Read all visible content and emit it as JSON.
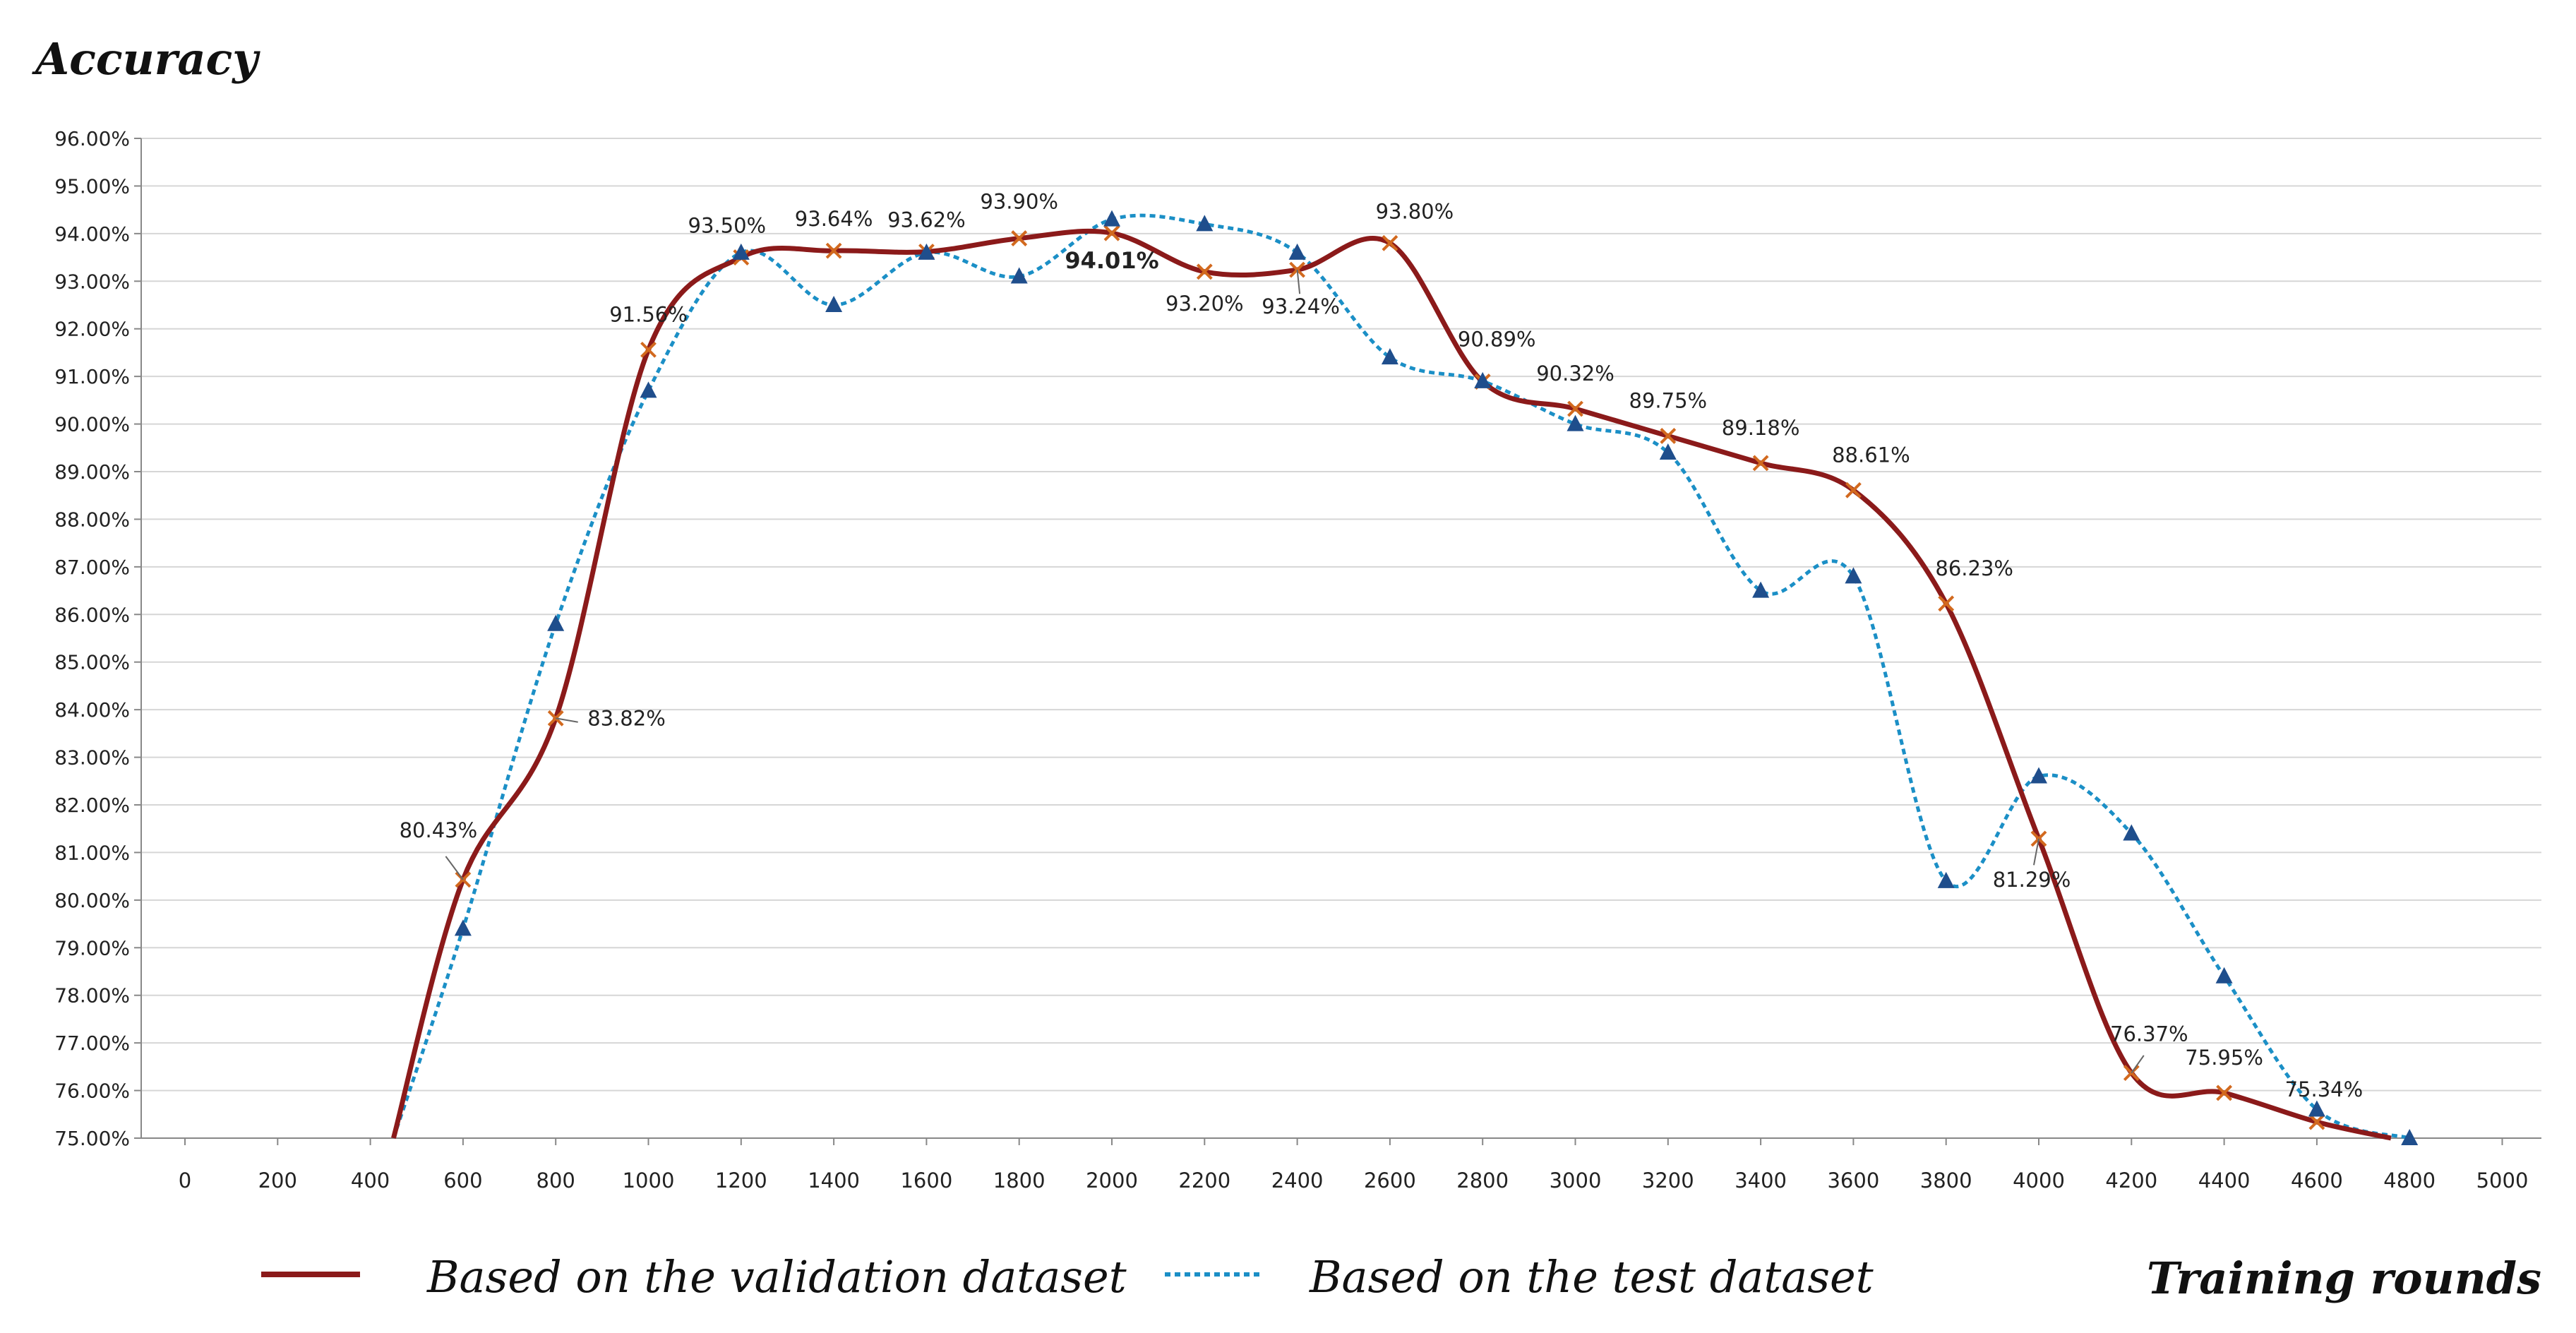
{
  "chart_data": {
    "type": "line",
    "y_axis_title": "Accuracy",
    "x_axis_title": "Training rounds",
    "ylim": [
      75,
      96
    ],
    "y_step": 1,
    "y_tick_suffix": ".00%",
    "x_ticks": [
      "0",
      "200",
      "400",
      "600",
      "800",
      "1000",
      "1200",
      "1400",
      "1600",
      "1800",
      "2000",
      "2200",
      "2400",
      "2600",
      "2800",
      "3000",
      "3200",
      "3400",
      "3600",
      "3800",
      "4000",
      "4200",
      "4400",
      "4600",
      "4800",
      "5000"
    ],
    "grid": true,
    "legend_position": "bottom",
    "series": [
      {
        "name": "Based on the validation dataset",
        "color": "#8b1a1a",
        "style": "solid",
        "marker": "x",
        "marker_color": "#d2691e",
        "points": [
          {
            "x": 450,
            "y": 75.0
          },
          {
            "x": 600,
            "y": 80.43,
            "label": "80.43%"
          },
          {
            "x": 800,
            "y": 83.82,
            "label": "83.82%"
          },
          {
            "x": 1000,
            "y": 91.56,
            "label": "91.56%"
          },
          {
            "x": 1200,
            "y": 93.5,
            "label": "93.50%"
          },
          {
            "x": 1400,
            "y": 93.64,
            "label": "93.64%"
          },
          {
            "x": 1600,
            "y": 93.62,
            "label": "93.62%"
          },
          {
            "x": 1800,
            "y": 93.9,
            "label": "93.90%"
          },
          {
            "x": 2000,
            "y": 94.01,
            "label": "94.01%"
          },
          {
            "x": 2200,
            "y": 93.2,
            "label": "93.20%"
          },
          {
            "x": 2400,
            "y": 93.24,
            "label": "93.24%"
          },
          {
            "x": 2600,
            "y": 93.8,
            "label": "93.80%"
          },
          {
            "x": 2800,
            "y": 90.89,
            "label": "90.89%"
          },
          {
            "x": 3000,
            "y": 90.32,
            "label": "90.32%"
          },
          {
            "x": 3200,
            "y": 89.75,
            "label": "89.75%"
          },
          {
            "x": 3400,
            "y": 89.18,
            "label": "89.18%"
          },
          {
            "x": 3600,
            "y": 88.61,
            "label": "88.61%"
          },
          {
            "x": 3800,
            "y": 86.23,
            "label": "86.23%"
          },
          {
            "x": 4000,
            "y": 81.29,
            "label": "81.29%"
          },
          {
            "x": 4200,
            "y": 76.37,
            "label": "76.37%"
          },
          {
            "x": 4400,
            "y": 75.95,
            "label": "75.95%"
          },
          {
            "x": 4600,
            "y": 75.34,
            "label": "75.34%"
          },
          {
            "x": 4760,
            "y": 75.0
          }
        ]
      },
      {
        "name": "Based on the test dataset",
        "color": "#1b8fc6",
        "style": "dotted",
        "marker": "triangle",
        "marker_color": "#1f4e8c",
        "points": [
          {
            "x": 450,
            "y": 75.0
          },
          {
            "x": 600,
            "y": 79.4
          },
          {
            "x": 800,
            "y": 85.8
          },
          {
            "x": 1000,
            "y": 90.7
          },
          {
            "x": 1200,
            "y": 93.6
          },
          {
            "x": 1400,
            "y": 92.5
          },
          {
            "x": 1600,
            "y": 93.6
          },
          {
            "x": 1800,
            "y": 93.1
          },
          {
            "x": 2000,
            "y": 94.3
          },
          {
            "x": 2200,
            "y": 94.2
          },
          {
            "x": 2400,
            "y": 93.6
          },
          {
            "x": 2600,
            "y": 91.4
          },
          {
            "x": 2800,
            "y": 90.9
          },
          {
            "x": 3000,
            "y": 90.0
          },
          {
            "x": 3200,
            "y": 89.4
          },
          {
            "x": 3400,
            "y": 86.5
          },
          {
            "x": 3600,
            "y": 86.8
          },
          {
            "x": 3800,
            "y": 80.4
          },
          {
            "x": 4000,
            "y": 82.6
          },
          {
            "x": 4200,
            "y": 81.4
          },
          {
            "x": 4400,
            "y": 78.4
          },
          {
            "x": 4600,
            "y": 75.6
          },
          {
            "x": 4800,
            "y": 75.0
          }
        ]
      }
    ]
  }
}
